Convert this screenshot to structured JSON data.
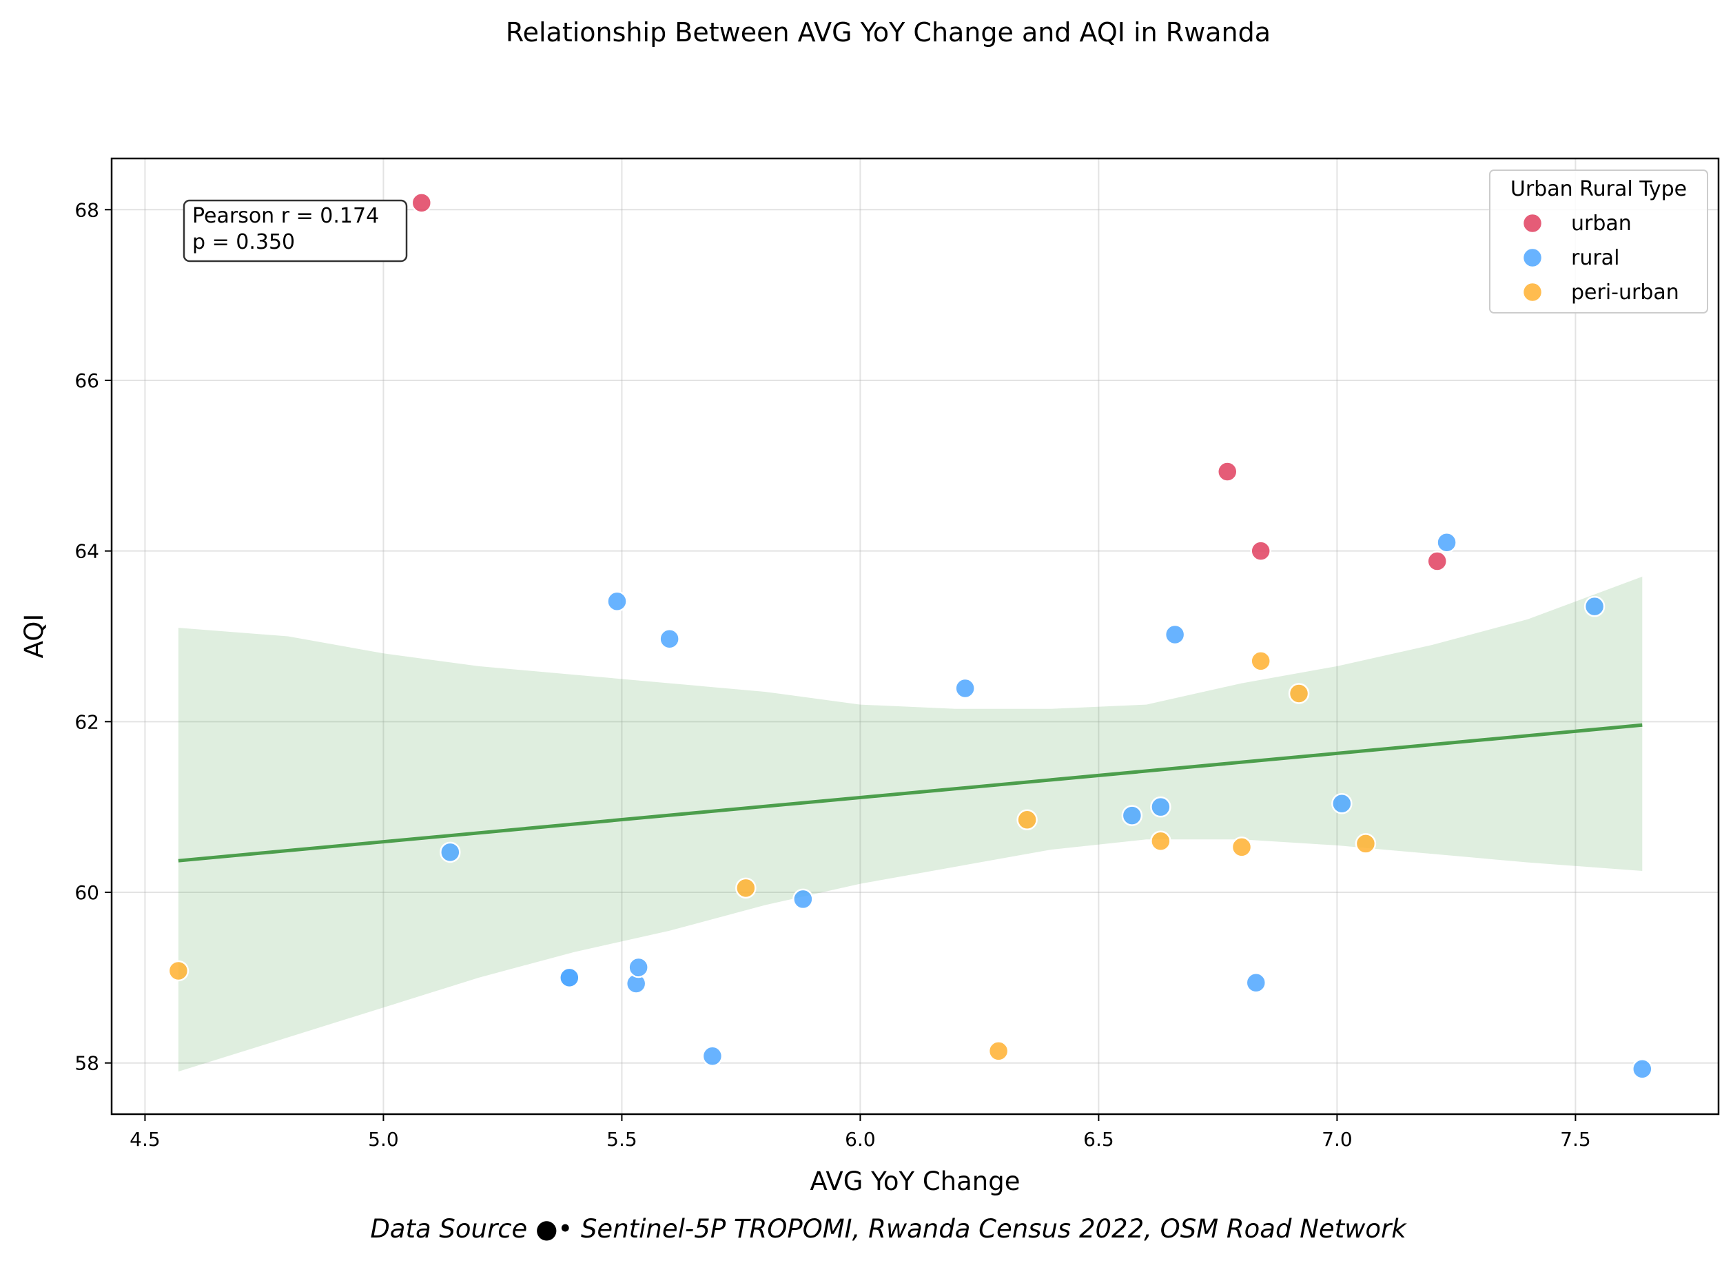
{
  "chart_data": {
    "type": "scatter",
    "title": "Relationship Between AVG YoY Change and AQI in Rwanda",
    "xlabel": "AVG YoY Change",
    "ylabel": "AQI",
    "xlim": [
      4.43,
      7.8
    ],
    "ylim": [
      57.4,
      68.6
    ],
    "xticks": [
      "4.5",
      "5.0",
      "5.5",
      "6.0",
      "6.5",
      "7.0",
      "7.5"
    ],
    "yticks": [
      "58",
      "60",
      "62",
      "64",
      "66",
      "68"
    ],
    "grid": true,
    "legend_title": "Urban Rural Type",
    "legend_position": "top-right",
    "annotation": {
      "line1": "Pearson r = 0.174",
      "line2": "p = 0.350",
      "position": "top-left"
    },
    "source": "Data Source ●• Sentinel-5P TROPOMI, Rwanda Census 2022, OSM Road Network",
    "series": [
      {
        "name": "urban",
        "color": "#e0405f",
        "points": [
          [
            5.08,
            68.08
          ],
          [
            6.77,
            64.93
          ],
          [
            6.84,
            64.0
          ],
          [
            7.21,
            63.88
          ]
        ]
      },
      {
        "name": "rural",
        "color": "#4da6ff",
        "points": [
          [
            5.14,
            60.47
          ],
          [
            5.39,
            59.0
          ],
          [
            5.39,
            59.0
          ],
          [
            5.49,
            63.41
          ],
          [
            5.53,
            58.93
          ],
          [
            5.535,
            59.12
          ],
          [
            5.6,
            62.97
          ],
          [
            5.69,
            58.08
          ],
          [
            5.88,
            59.92
          ],
          [
            6.22,
            62.39
          ],
          [
            6.57,
            60.9
          ],
          [
            6.63,
            61.0
          ],
          [
            6.66,
            63.02
          ],
          [
            6.83,
            58.94
          ],
          [
            7.01,
            61.04
          ],
          [
            7.23,
            64.1
          ],
          [
            7.54,
            63.35
          ],
          [
            7.64,
            57.93
          ]
        ]
      },
      {
        "name": "peri-urban",
        "color": "#ffb030",
        "points": [
          [
            4.57,
            59.08
          ],
          [
            5.76,
            60.05
          ],
          [
            6.29,
            58.14
          ],
          [
            6.35,
            60.85
          ],
          [
            6.63,
            60.6
          ],
          [
            6.8,
            60.53
          ],
          [
            6.84,
            62.71
          ],
          [
            6.92,
            62.33
          ],
          [
            7.06,
            60.57
          ]
        ]
      }
    ],
    "regression": {
      "color": "#4c9e4c",
      "line": [
        [
          4.57,
          60.37
        ],
        [
          7.64,
          61.96
        ]
      ],
      "ci_upper": [
        [
          4.57,
          63.1
        ],
        [
          4.8,
          63.0
        ],
        [
          5.0,
          62.8
        ],
        [
          5.2,
          62.65
        ],
        [
          5.4,
          62.55
        ],
        [
          5.6,
          62.45
        ],
        [
          5.8,
          62.35
        ],
        [
          6.0,
          62.2
        ],
        [
          6.2,
          62.15
        ],
        [
          6.4,
          62.15
        ],
        [
          6.6,
          62.2
        ],
        [
          6.8,
          62.45
        ],
        [
          7.0,
          62.65
        ],
        [
          7.2,
          62.9
        ],
        [
          7.4,
          63.2
        ],
        [
          7.64,
          63.7
        ]
      ],
      "ci_lower": [
        [
          4.57,
          57.9
        ],
        [
          4.8,
          58.3
        ],
        [
          5.0,
          58.65
        ],
        [
          5.2,
          59.0
        ],
        [
          5.4,
          59.3
        ],
        [
          5.6,
          59.55
        ],
        [
          5.8,
          59.85
        ],
        [
          6.0,
          60.1
        ],
        [
          6.2,
          60.3
        ],
        [
          6.4,
          60.5
        ],
        [
          6.6,
          60.62
        ],
        [
          6.8,
          60.62
        ],
        [
          7.0,
          60.55
        ],
        [
          7.2,
          60.45
        ],
        [
          7.4,
          60.35
        ],
        [
          7.64,
          60.25
        ]
      ]
    }
  }
}
